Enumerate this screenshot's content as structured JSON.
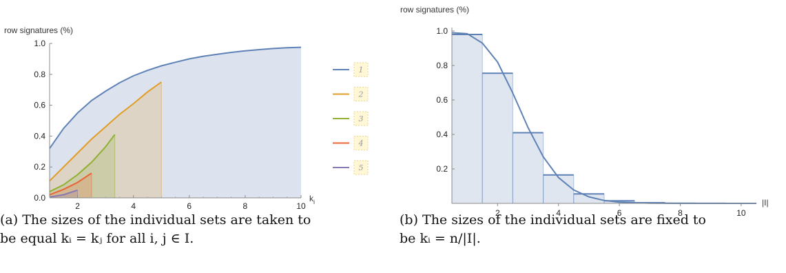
{
  "chart_data": [
    {
      "type": "area",
      "ylabel": "row signatures (%)",
      "xlabel": "k",
      "xlabel_sub": "i",
      "xlim": [
        1,
        10
      ],
      "ylim": [
        0,
        1.0
      ],
      "xticks": [
        "2",
        "4",
        "6",
        "8",
        "10"
      ],
      "yticks": [
        "0.0",
        "0.2",
        "0.4",
        "0.6",
        "0.8",
        "1.0"
      ],
      "legend_position": "right",
      "series": [
        {
          "name": "1",
          "color": "#5E81B5",
          "x_end": 10,
          "points": [
            [
              1,
              0.32
            ],
            [
              1.5,
              0.45
            ],
            [
              2,
              0.55
            ],
            [
              2.5,
              0.63
            ],
            [
              3,
              0.69
            ],
            [
              3.5,
              0.745
            ],
            [
              4,
              0.79
            ],
            [
              4.5,
              0.825
            ],
            [
              5,
              0.855
            ],
            [
              5.5,
              0.878
            ],
            [
              6,
              0.9
            ],
            [
              6.5,
              0.917
            ],
            [
              7,
              0.93
            ],
            [
              7.5,
              0.942
            ],
            [
              8,
              0.952
            ],
            [
              8.5,
              0.96
            ],
            [
              9,
              0.967
            ],
            [
              9.5,
              0.972
            ],
            [
              10,
              0.975
            ]
          ]
        },
        {
          "name": "2",
          "color": "#E19C24",
          "x_end": 5,
          "points": [
            [
              1,
              0.11
            ],
            [
              1.5,
              0.2
            ],
            [
              2,
              0.29
            ],
            [
              2.5,
              0.38
            ],
            [
              3,
              0.46
            ],
            [
              3.5,
              0.54
            ],
            [
              4,
              0.61
            ],
            [
              4.5,
              0.685
            ],
            [
              5,
              0.75
            ]
          ]
        },
        {
          "name": "3",
          "color": "#8FB032",
          "x_end": 3.3333,
          "points": [
            [
              1,
              0.04
            ],
            [
              1.5,
              0.085
            ],
            [
              2,
              0.15
            ],
            [
              2.5,
              0.23
            ],
            [
              3,
              0.33
            ],
            [
              3.3333,
              0.41
            ]
          ]
        },
        {
          "name": "4",
          "color": "#EB6235",
          "x_end": 2.5,
          "points": [
            [
              1,
              0.02
            ],
            [
              1.5,
              0.055
            ],
            [
              2,
              0.1
            ],
            [
              2.5,
              0.16
            ]
          ]
        },
        {
          "name": "5",
          "color": "#8778B3",
          "x_end": 2,
          "points": [
            [
              1,
              0.005
            ],
            [
              1.5,
              0.02
            ],
            [
              2,
              0.05
            ]
          ]
        }
      ]
    },
    {
      "type": "bar",
      "ylabel": "row signatures (%)",
      "xlabel": "|I|",
      "xlim": [
        0.5,
        10.5
      ],
      "ylim": [
        0,
        1.0
      ],
      "xticks": [
        "2",
        "4",
        "6",
        "8",
        "10"
      ],
      "yticks": [
        "0.2",
        "0.4",
        "0.6",
        "0.8",
        "1.0"
      ],
      "color": "#5E81B5",
      "bars": [
        {
          "x": 1,
          "value": 0.98
        },
        {
          "x": 2,
          "value": 0.755
        },
        {
          "x": 3,
          "value": 0.41
        },
        {
          "x": 4,
          "value": 0.165
        },
        {
          "x": 5,
          "value": 0.055
        },
        {
          "x": 6,
          "value": 0.015
        },
        {
          "x": 7,
          "value": 0.004
        },
        {
          "x": 8,
          "value": 0.001
        },
        {
          "x": 9,
          "value": 0.0003
        },
        {
          "x": 10,
          "value": 0.0001
        }
      ],
      "curve": [
        [
          0.5,
          0.99
        ],
        [
          1,
          0.985
        ],
        [
          1.5,
          0.93
        ],
        [
          2,
          0.82
        ],
        [
          2.5,
          0.64
        ],
        [
          3,
          0.44
        ],
        [
          3.5,
          0.27
        ],
        [
          4,
          0.15
        ],
        [
          4.5,
          0.078
        ],
        [
          5,
          0.038
        ],
        [
          5.5,
          0.017
        ],
        [
          6,
          0.007
        ],
        [
          7,
          0.001
        ],
        [
          8,
          0.0001
        ],
        [
          10,
          0
        ]
      ]
    }
  ],
  "captions": {
    "a_line1": "(a) The sizes of the individual sets are taken to",
    "a_line2": "be equal kᵢ = kⱼ for all i, j ∈ I.",
    "b_line1": "(b) The sizes of the individual sets are fixed to",
    "b_line2": "be kᵢ = n/|I|."
  }
}
